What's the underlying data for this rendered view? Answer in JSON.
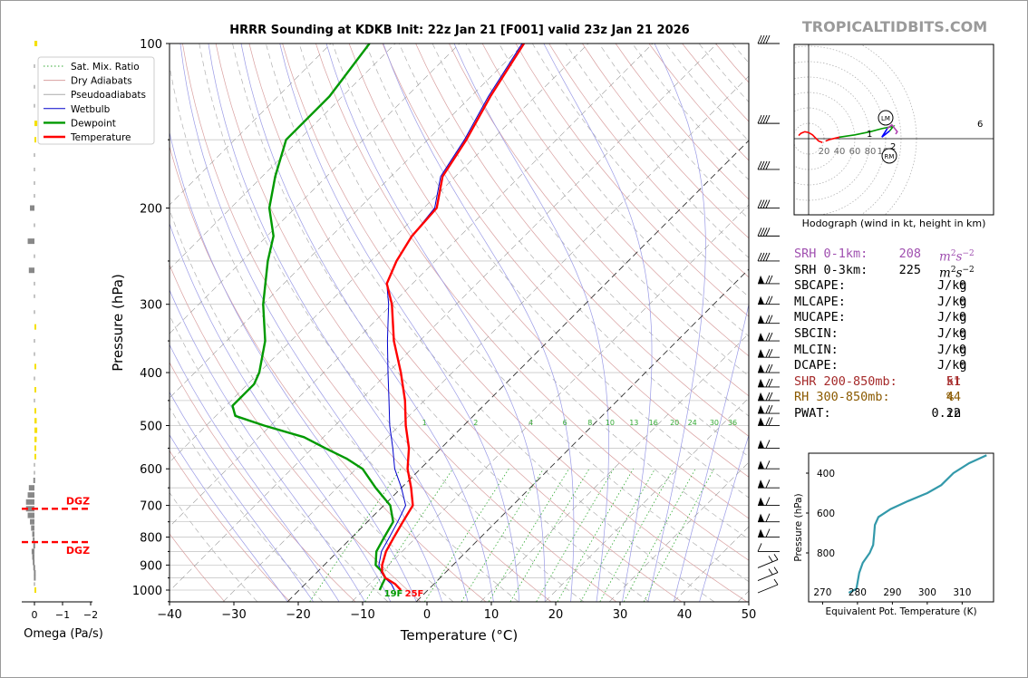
{
  "title": "HRRR Sounding at KDKB Init: 22z Jan 21 [F001] valid 23z Jan 21 2026",
  "watermark": "TROPICALTIDBITS.COM",
  "skewt": {
    "xlabel": "Temperature (°C)",
    "ylabel": "Pressure (hPa)",
    "xticks": [
      "−40",
      "−30",
      "−20",
      "−10",
      "0",
      "10",
      "20",
      "30",
      "40",
      "50"
    ],
    "yticks": [
      "100",
      "200",
      "300",
      "400",
      "500",
      "600",
      "700",
      "800",
      "900",
      "1000"
    ],
    "mixing_ratio_labels": [
      "1",
      "2",
      "4",
      "6",
      "8",
      "10",
      "13",
      "16",
      "20",
      "24",
      "30",
      "36"
    ],
    "surface_dewpoint_label": "19F",
    "surface_temperature_label": "25F",
    "legend": [
      "Sat. Mix. Ratio",
      "Dry Adiabats",
      "Pseudoadiabats",
      "Wetbulb",
      "Dewpoint",
      "Temperature"
    ],
    "colors": {
      "temperature": "#ff0000",
      "dewpoint": "#009900",
      "wetbulb": "#0000cc",
      "dry": "#d9a0a0",
      "moist": "#9a9ae6",
      "mixing": "#33aa33"
    }
  },
  "chart_data": [
    {
      "type": "line",
      "title": "HRRR Sounding at KDKB Init: 22z Jan 21 [F001] valid 23z Jan 21 2026",
      "xlabel": "Temperature (°C)",
      "ylabel": "Pressure (hPa)",
      "xlim": [
        -40,
        50
      ],
      "ylim": [
        1050,
        100
      ],
      "log_y": true,
      "skew": true,
      "series": [
        {
          "name": "Temperature",
          "points": [
            [
              1000,
              -4.2
            ],
            [
              975,
              -6
            ],
            [
              950,
              -8.5
            ],
            [
              925,
              -10
            ],
            [
              900,
              -11
            ],
            [
              850,
              -12.5
            ],
            [
              800,
              -13.5
            ],
            [
              750,
              -14.5
            ],
            [
              700,
              -15.5
            ],
            [
              650,
              -18.5
            ],
            [
              600,
              -22
            ],
            [
              550,
              -25
            ],
            [
              500,
              -29
            ],
            [
              450,
              -33
            ],
            [
              400,
              -38
            ],
            [
              350,
              -44
            ],
            [
              300,
              -50
            ],
            [
              275,
              -54
            ],
            [
              250,
              -56
            ],
            [
              225,
              -57.5
            ],
            [
              200,
              -58
            ],
            [
              175,
              -62
            ],
            [
              150,
              -64
            ],
            [
              125,
              -67
            ],
            [
              100,
              -70
            ]
          ]
        },
        {
          "name": "Dewpoint",
          "points": [
            [
              1000,
              -7.5
            ],
            [
              975,
              -8
            ],
            [
              950,
              -8.5
            ],
            [
              925,
              -10
            ],
            [
              900,
              -12
            ],
            [
              850,
              -14
            ],
            [
              800,
              -15
            ],
            [
              750,
              -16
            ],
            [
              700,
              -19
            ],
            [
              650,
              -24
            ],
            [
              600,
              -29
            ],
            [
              575,
              -33
            ],
            [
              550,
              -38
            ],
            [
              525,
              -43
            ],
            [
              500,
              -51
            ],
            [
              480,
              -57
            ],
            [
              460,
              -59
            ],
            [
              420,
              -59
            ],
            [
              400,
              -60
            ],
            [
              350,
              -64
            ],
            [
              300,
              -70
            ],
            [
              250,
              -76
            ],
            [
              225,
              -79
            ],
            [
              200,
              -84
            ],
            [
              175,
              -88
            ],
            [
              150,
              -92
            ],
            [
              125,
              -92
            ],
            [
              100,
              -94
            ]
          ]
        },
        {
          "name": "Wetbulb",
          "points": [
            [
              1000,
              -5.2
            ],
            [
              975,
              -6.6
            ],
            [
              950,
              -8.6
            ],
            [
              925,
              -10.2
            ],
            [
              900,
              -11.5
            ],
            [
              850,
              -13.2
            ],
            [
              800,
              -14.2
            ],
            [
              750,
              -15.3
            ],
            [
              700,
              -16.6
            ],
            [
              650,
              -20
            ],
            [
              600,
              -24
            ],
            [
              550,
              -27.5
            ],
            [
              500,
              -31.5
            ],
            [
              450,
              -35.5
            ],
            [
              400,
              -40
            ],
            [
              350,
              -45
            ],
            [
              300,
              -50.5
            ],
            [
              275,
              -54
            ],
            [
              250,
              -56
            ],
            [
              225,
              -57.5
            ],
            [
              200,
              -58.3
            ],
            [
              175,
              -62.3
            ],
            [
              150,
              -64.3
            ],
            [
              125,
              -67.3
            ],
            [
              100,
              -70.3
            ]
          ]
        }
      ]
    },
    {
      "type": "bar",
      "xlabel": "Omega (Pa/s)",
      "xticks": [
        "0",
        "−1",
        "−2"
      ],
      "dgz_label": "DGZ",
      "dgz_hpa": [
        710,
        817
      ],
      "pressure": [
        100,
        110,
        120,
        130,
        140,
        150,
        160,
        170,
        180,
        190,
        200,
        215,
        230,
        245,
        260,
        275,
        290,
        310,
        330,
        350,
        370,
        390,
        410,
        430,
        450,
        470,
        490,
        510,
        530,
        550,
        570,
        590,
        610,
        630,
        650,
        670,
        690,
        710,
        730,
        750,
        770,
        790,
        810,
        830,
        850,
        870,
        890,
        910,
        930,
        950,
        975,
        1000
      ],
      "omega": [
        -0.05,
        0,
        0,
        0,
        -0.05,
        -0.03,
        0,
        0,
        0,
        0,
        0.08,
        0,
        0.12,
        0,
        0.1,
        0,
        0,
        0,
        -0.03,
        0,
        0,
        -0.02,
        0,
        -0.02,
        0,
        -0.03,
        -0.04,
        -0.05,
        -0.04,
        -0.03,
        -0.02,
        0,
        0,
        0.02,
        0.1,
        0.12,
        0.15,
        0.15,
        0.12,
        0.08,
        0.06,
        0.04,
        0.03,
        0.02,
        0.05,
        0.04,
        0.03,
        0.02,
        0.01,
        0.01,
        0,
        -0.02
      ]
    },
    {
      "type": "line",
      "title": "Hodograph (wind in kt, height in km)",
      "ring_labels": [
        "20",
        "40",
        "60",
        "80",
        "100"
      ],
      "height_labels": [
        "1",
        "2",
        "6"
      ],
      "storm_motion_labels": [
        "LM",
        "RM"
      ],
      "points": [
        [
          -13,
          4
        ],
        [
          -10,
          7
        ],
        [
          -5,
          9
        ],
        [
          0,
          8
        ],
        [
          5,
          5
        ],
        [
          9,
          1
        ],
        [
          13,
          -3
        ],
        [
          18,
          -5
        ],
        [
          22,
          -3
        ],
        [
          28,
          -1
        ],
        [
          40,
          2
        ],
        [
          60,
          5
        ],
        [
          80,
          9
        ],
        [
          95,
          13
        ],
        [
          110,
          16
        ],
        [
          105,
          10
        ],
        [
          95,
          2
        ],
        [
          102,
          13
        ],
        [
          108,
          18
        ],
        [
          115,
          9
        ],
        [
          113,
          6
        ]
      ]
    },
    {
      "type": "line",
      "xlabel": "Equivalent Pot. Temperature (K)",
      "ylabel": "Pressure (hPa)",
      "xticks": [
        "270",
        "280",
        "290",
        "300",
        "310"
      ],
      "yticks": [
        "400",
        "600",
        "800"
      ],
      "xlim": [
        266,
        319
      ],
      "ylim": [
        1050,
        310
      ],
      "series": [
        {
          "name": "",
          "points": [
            [
              1000,
              277.5
            ],
            [
              980,
              279.7
            ],
            [
              950,
              280
            ],
            [
              900,
              280.5
            ],
            [
              850,
              281.5
            ],
            [
              800,
              283.5
            ],
            [
              760,
              284.5
            ],
            [
              700,
              284.8
            ],
            [
              660,
              285
            ],
            [
              620,
              286
            ],
            [
              580,
              289.5
            ],
            [
              540,
              294.5
            ],
            [
              500,
              300
            ],
            [
              460,
              304
            ],
            [
              400,
              307.5
            ],
            [
              350,
              312
            ],
            [
              310,
              317
            ]
          ]
        }
      ]
    }
  ],
  "hodograph": {
    "caption": "Hodograph (wind in kt, height in km)",
    "rings": [
      "20",
      "40",
      "60",
      "80",
      "100"
    ],
    "height_labels": [
      "1",
      "2",
      "6"
    ],
    "lm": "LM",
    "rm": "RM"
  },
  "params": [
    {
      "label": "SRH 0-1km:",
      "value": "208",
      "unit": "m2s-2",
      "color": "#a050b0"
    },
    {
      "label": "SRH 0-3km:",
      "value": "225",
      "unit": "m2s-2",
      "color": "#000000"
    },
    {
      "label": "SBCAPE:",
      "value": "0",
      "unit": "J/kg",
      "color": "#000000"
    },
    {
      "label": "MLCAPE:",
      "value": "0",
      "unit": "J/kg",
      "color": "#000000"
    },
    {
      "label": "MUCAPE:",
      "value": "0",
      "unit": "J/kg",
      "color": "#000000"
    },
    {
      "label": "SBCIN:",
      "value": "0",
      "unit": "J/kg",
      "color": "#000000"
    },
    {
      "label": "MLCIN:",
      "value": "0",
      "unit": "J/kg",
      "color": "#000000"
    },
    {
      "label": "DCAPE:",
      "value": "0",
      "unit": "J/kg",
      "color": "#000000"
    },
    {
      "label": "SHR 200-850mb:",
      "value": "51",
      "unit": "kt",
      "color": "#a52a2a"
    },
    {
      "label": "RH 300-850mb:",
      "value": "44",
      "unit": "%",
      "color": "#8b5a00"
    },
    {
      "label": "PWAT:",
      "value": "0.22",
      "unit": "in",
      "color": "#000000"
    }
  ],
  "omega_panel": {
    "xlabel": "Omega (Pa/s)",
    "xticks": [
      "0",
      "−1",
      "−2"
    ],
    "dgz": "DGZ"
  },
  "theta_e_panel": {
    "xlabel": "Equivalent Pot. Temperature (K)",
    "ylabel": "Pressure (hPa)",
    "xticks": [
      "270",
      "280",
      "290",
      "300",
      "310"
    ],
    "yticks": [
      "400",
      "600",
      "800"
    ]
  },
  "wind_barbs_hpa": [
    100,
    140,
    170,
    200,
    225,
    250,
    275,
    300,
    325,
    350,
    375,
    400,
    425,
    450,
    475,
    500,
    550,
    600,
    650,
    700,
    750,
    800,
    850,
    900,
    950,
    1000
  ]
}
